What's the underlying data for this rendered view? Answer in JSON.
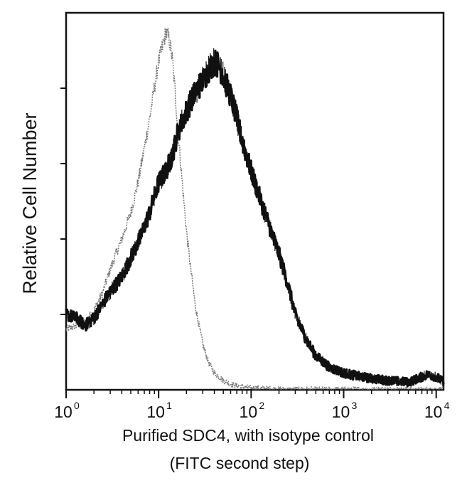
{
  "chart_data": {
    "type": "area",
    "title": "",
    "xlabel_line1": "Purified SDC4, with isotype control",
    "xlabel_line2": "(FITC second step)",
    "ylabel": "Relative Cell Number",
    "x_scale": "log",
    "xlim": [
      1,
      12000
    ],
    "ylim": [
      0,
      1.0
    ],
    "x_ticks": [
      {
        "base": "10",
        "exp": "0",
        "value": 1
      },
      {
        "base": "10",
        "exp": "1",
        "value": 10
      },
      {
        "base": "10",
        "exp": "2",
        "value": 100
      },
      {
        "base": "10",
        "exp": "3",
        "value": 1000
      },
      {
        "base": "10",
        "exp": "4",
        "value": 10000
      }
    ],
    "y_ticks_labeled": false,
    "grid": false,
    "series": [
      {
        "color": "#111111",
        "style": "dense-noisy",
        "x": [
          1,
          1.3,
          1.6,
          2,
          2.5,
          3,
          4,
          5,
          6,
          8,
          10,
          12,
          14,
          16,
          20,
          25,
          30,
          35,
          40,
          45,
          50,
          60,
          70,
          80,
          100,
          120,
          150,
          200,
          250,
          300,
          400,
          500,
          700,
          1000,
          1500,
          2000,
          3000,
          5000,
          8000,
          10000,
          12000
        ],
        "y": [
          0.2,
          0.19,
          0.17,
          0.19,
          0.23,
          0.26,
          0.3,
          0.35,
          0.39,
          0.47,
          0.55,
          0.58,
          0.62,
          0.68,
          0.74,
          0.79,
          0.82,
          0.85,
          0.87,
          0.86,
          0.83,
          0.78,
          0.72,
          0.66,
          0.58,
          0.52,
          0.45,
          0.36,
          0.28,
          0.2,
          0.13,
          0.09,
          0.06,
          0.045,
          0.035,
          0.03,
          0.025,
          0.02,
          0.04,
          0.035,
          0.02
        ]
      },
      {
        "color": "#777777",
        "style": "light-noisy",
        "x": [
          1,
          1.3,
          1.6,
          2,
          2.5,
          3,
          4,
          5,
          6,
          7,
          8,
          9,
          10,
          11,
          12,
          13,
          14,
          15,
          16,
          18,
          20,
          22,
          25,
          30,
          35,
          40,
          50,
          60,
          80,
          100,
          150,
          200,
          300,
          500,
          1000,
          10000
        ],
        "y": [
          0.16,
          0.17,
          0.18,
          0.21,
          0.26,
          0.32,
          0.4,
          0.47,
          0.55,
          0.64,
          0.72,
          0.8,
          0.87,
          0.91,
          0.95,
          0.93,
          0.88,
          0.8,
          0.7,
          0.55,
          0.42,
          0.33,
          0.22,
          0.12,
          0.07,
          0.045,
          0.025,
          0.015,
          0.008,
          0.005,
          0.003,
          0.002,
          0.001,
          0.001,
          0.001,
          0.001
        ]
      }
    ]
  }
}
